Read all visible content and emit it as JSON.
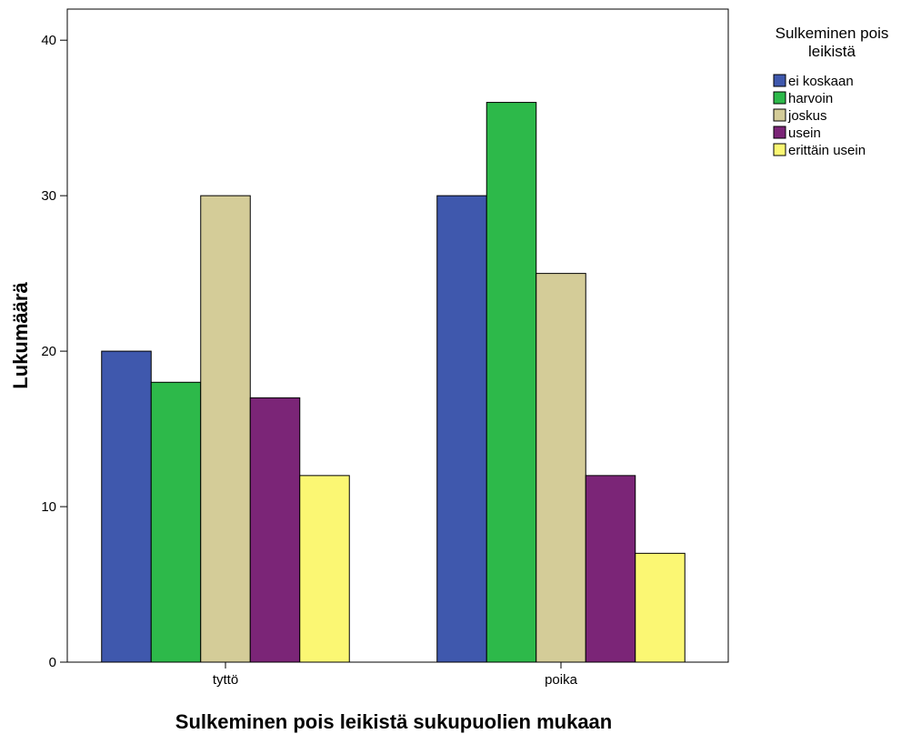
{
  "chart_data": {
    "type": "bar",
    "title": "",
    "xlabel": "Sulkeminen pois leikistä sukupuolien mukaan",
    "ylabel": "Lukumäärä",
    "categories": [
      "tyttö",
      "poika"
    ],
    "series": [
      {
        "name": "ei koskaan",
        "values": [
          20,
          30
        ],
        "color": "#3f58ad"
      },
      {
        "name": "harvoin",
        "values": [
          18,
          36
        ],
        "color": "#2db94a"
      },
      {
        "name": "joskus",
        "values": [
          30,
          25
        ],
        "color": "#d4cc98"
      },
      {
        "name": "usein",
        "values": [
          17,
          12
        ],
        "color": "#7b2577"
      },
      {
        "name": "erittäin usein",
        "values": [
          12,
          7
        ],
        "color": "#fbf773"
      }
    ],
    "ylim": [
      0,
      42
    ],
    "yticks": [
      "0",
      "10",
      "20",
      "30",
      "40"
    ],
    "grid": false,
    "legend": {
      "title_lines": [
        "Sulkeminen pois",
        "leikistä"
      ],
      "position": "top-right"
    }
  }
}
